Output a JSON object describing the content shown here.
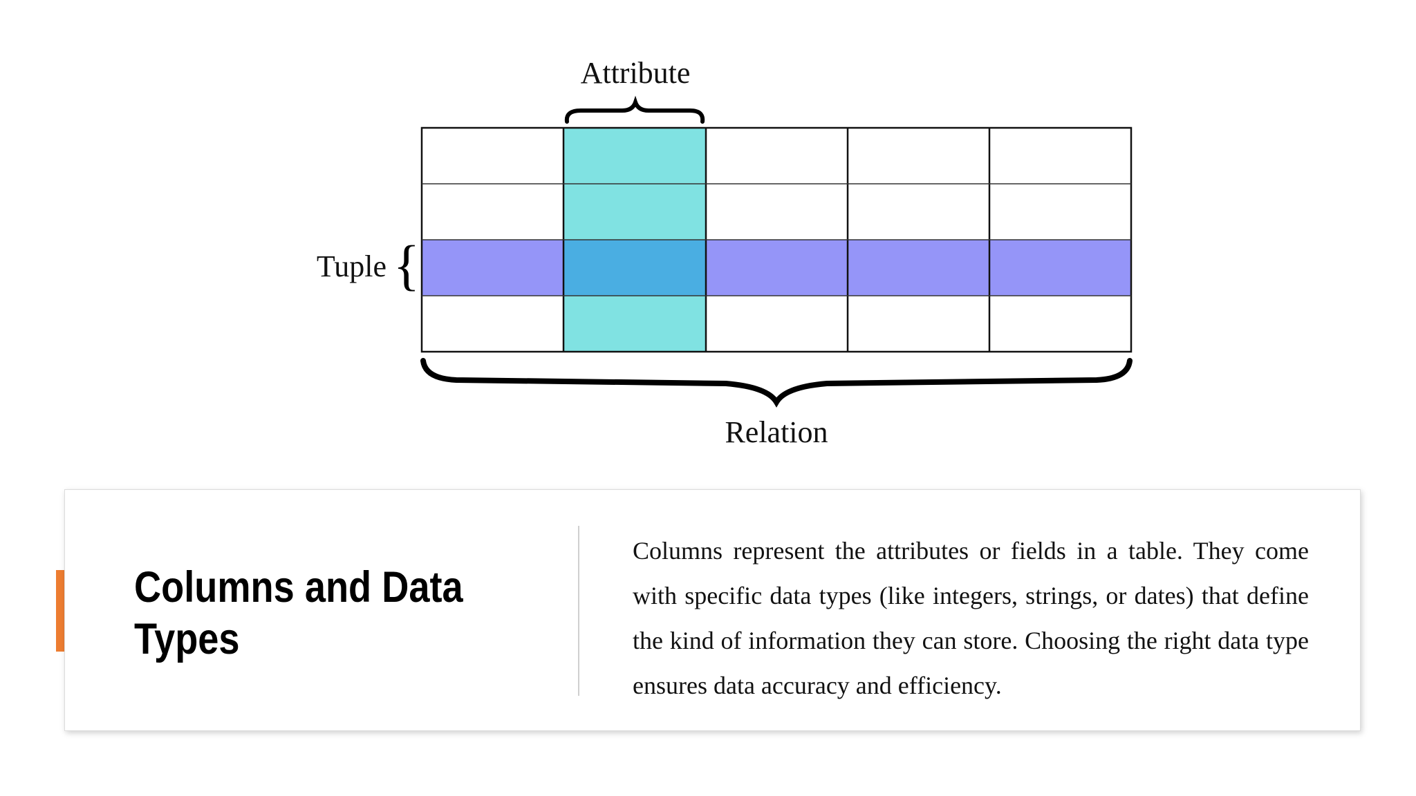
{
  "diagram": {
    "attribute_label": "Attribute",
    "tuple_label": "Tuple",
    "relation_label": "Relation"
  },
  "card": {
    "title": "Columns and Data Types",
    "body": "Columns represent the attributes or fields in a table. They come with specific data types (like integers, strings, or dates) that define the kind of information they can store. Choosing the right data type ensures data accuracy and efficiency."
  }
}
